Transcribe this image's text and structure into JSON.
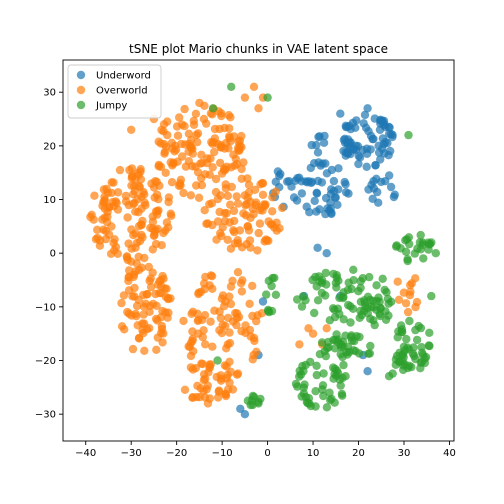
{
  "chart_data": {
    "type": "scatter",
    "title": "tSNE plot Mario chunks in VAE latent space",
    "xlabel": "",
    "ylabel": "",
    "xlim": [
      -45,
      41
    ],
    "ylim": [
      -35,
      36
    ],
    "xticks": [
      -40,
      -30,
      -20,
      -10,
      0,
      10,
      20,
      30,
      40
    ],
    "yticks": [
      -30,
      -20,
      -10,
      0,
      10,
      20,
      30
    ],
    "grid": false,
    "legend_position": "top-left",
    "series": [
      {
        "name": "Underword",
        "color": "#1f77b4",
        "clusters": [
          {
            "cx": 22,
            "cy": 21,
            "rx": 6,
            "ry": 5,
            "count": 75
          },
          {
            "cx": 12,
            "cy": 12,
            "rx": 6,
            "ry": 5,
            "count": 45
          },
          {
            "cx": 4,
            "cy": 12,
            "rx": 3,
            "ry": 4,
            "count": 14
          },
          {
            "cx": 26,
            "cy": 12,
            "rx": 4,
            "ry": 3,
            "count": 14
          },
          {
            "cx": 12,
            "cy": 19,
            "rx": 3,
            "ry": 3,
            "count": 9
          }
        ],
        "points": [
          [
            16,
            26
          ],
          [
            22,
            27
          ],
          [
            -6,
            -29
          ],
          [
            -5,
            -30
          ],
          [
            -1,
            -9
          ],
          [
            11,
            1
          ],
          [
            13,
            0
          ],
          [
            22,
            -22
          ],
          [
            21,
            -19
          ],
          [
            8,
            -8
          ],
          [
            16,
            -8
          ],
          [
            -2,
            -19
          ]
        ]
      },
      {
        "name": "Overworld",
        "color": "#ff7f0e",
        "clusters": [
          {
            "cx": -30,
            "cy": 7,
            "rx": 9,
            "ry": 9,
            "count": 130
          },
          {
            "cx": -15,
            "cy": 19,
            "rx": 10,
            "ry": 9,
            "count": 130
          },
          {
            "cx": -27,
            "cy": -10,
            "rx": 6,
            "ry": 9,
            "count": 80
          },
          {
            "cx": -10,
            "cy": -13,
            "rx": 9,
            "ry": 11,
            "count": 95
          },
          {
            "cx": -5,
            "cy": 7,
            "rx": 9,
            "ry": 7,
            "count": 85
          },
          {
            "cx": -13,
            "cy": -24,
            "rx": 6,
            "ry": 4,
            "count": 30
          },
          {
            "cx": 31,
            "cy": -6,
            "rx": 3,
            "ry": 5,
            "count": 12
          }
        ],
        "points": [
          [
            -3,
            31
          ],
          [
            -5,
            29
          ],
          [
            -1,
            29
          ],
          [
            -15,
            28
          ],
          [
            -2,
            27
          ],
          [
            -14,
            25
          ],
          [
            -30,
            23
          ],
          [
            -25,
            25
          ],
          [
            13,
            -14
          ],
          [
            9,
            -14
          ],
          [
            7,
            -17
          ],
          [
            10,
            -15
          ],
          [
            12,
            -17
          ]
        ]
      },
      {
        "name": "Jumpy",
        "color": "#2ca02c",
        "clusters": [
          {
            "cx": 17,
            "cy": -8,
            "rx": 11,
            "ry": 5,
            "count": 70
          },
          {
            "cx": 32,
            "cy": -17,
            "rx": 4,
            "ry": 5,
            "count": 40
          },
          {
            "cx": 32,
            "cy": 1,
            "rx": 4,
            "ry": 3,
            "count": 22
          },
          {
            "cx": 12,
            "cy": -24,
            "rx": 6,
            "ry": 5,
            "count": 45
          },
          {
            "cx": 17,
            "cy": -18,
            "rx": 6,
            "ry": 3,
            "count": 38
          },
          {
            "cx": 1,
            "cy": -8,
            "rx": 2,
            "ry": 4,
            "count": 10
          },
          {
            "cx": -3,
            "cy": -28,
            "rx": 2,
            "ry": 2,
            "count": 8
          },
          {
            "cx": 23,
            "cy": -12,
            "rx": 4,
            "ry": 3,
            "count": 14
          },
          {
            "cx": 28,
            "cy": -22,
            "rx": 3,
            "ry": 3,
            "count": 10
          }
        ],
        "points": [
          [
            -8,
            31
          ],
          [
            0,
            29
          ],
          [
            -12,
            27
          ],
          [
            31,
            22
          ],
          [
            36,
            2
          ],
          [
            37,
            0
          ],
          [
            36,
            -8
          ],
          [
            -11,
            -20
          ],
          [
            -2,
            -28
          ]
        ]
      }
    ]
  }
}
